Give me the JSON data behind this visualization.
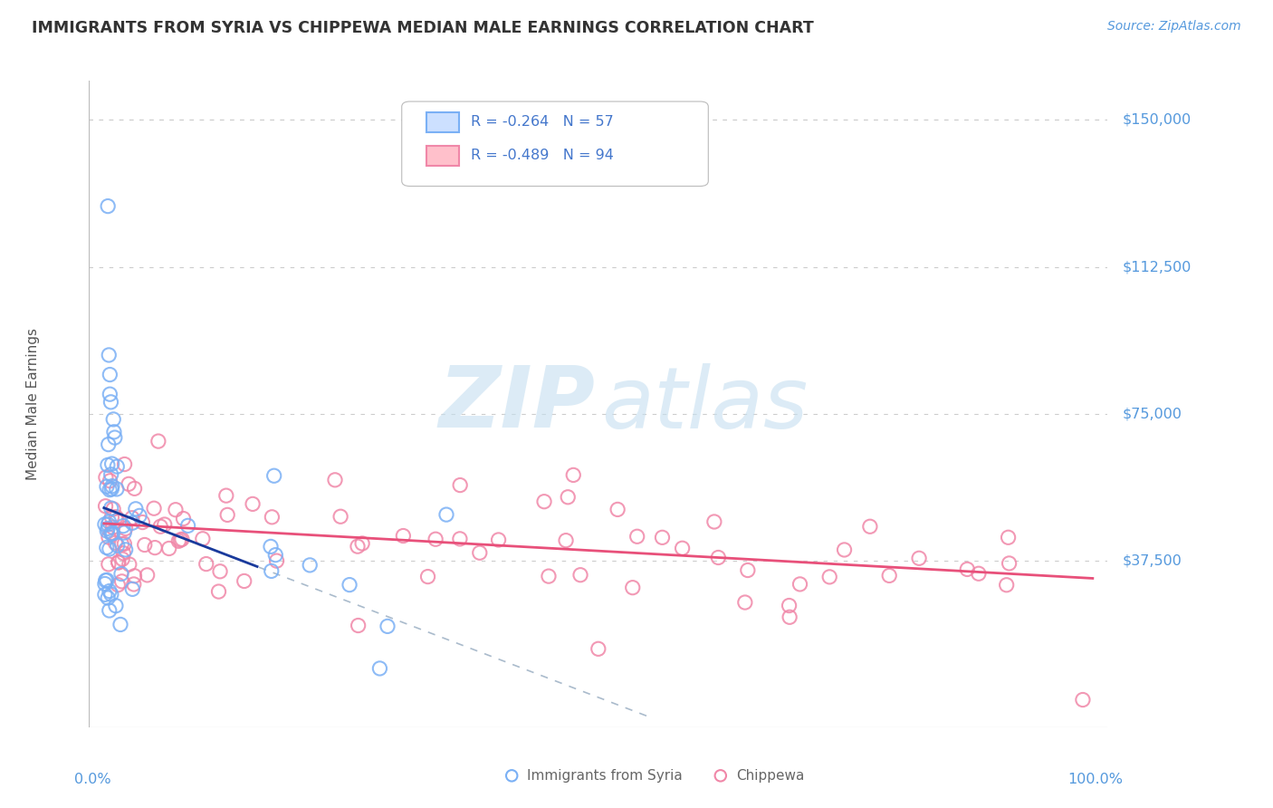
{
  "title": "IMMIGRANTS FROM SYRIA VS CHIPPEWA MEDIAN MALE EARNINGS CORRELATION CHART",
  "source": "Source: ZipAtlas.com",
  "ylabel": "Median Male Earnings",
  "x_min": 0.0,
  "x_max": 1.0,
  "y_min": -5000,
  "y_max": 160000,
  "y_ticks": [
    37500,
    75000,
    112500,
    150000
  ],
  "y_tick_labels": [
    "$37,500",
    "$75,000",
    "$112,500",
    "$150,000"
  ],
  "series1_label": "Immigrants from Syria",
  "series1_R": -0.264,
  "series1_N": 57,
  "series1_face_color": "none",
  "series1_edge_color": "#7ab0f5",
  "series1_line_color": "#1a3a9c",
  "series2_label": "Chippewa",
  "series2_R": -0.489,
  "series2_N": 94,
  "series2_face_color": "none",
  "series2_edge_color": "#f087a8",
  "series2_line_color": "#e8507a",
  "background_color": "#ffffff",
  "grid_color": "#cccccc",
  "title_color": "#333333",
  "axis_label_color": "#5599dd",
  "legend_text_color": "#4477cc",
  "watermark_zip_color": "#c5dff0",
  "watermark_atlas_color": "#c5dff0",
  "dash_line_color": "#aabbcc",
  "bottom_legend_color": "#666666"
}
